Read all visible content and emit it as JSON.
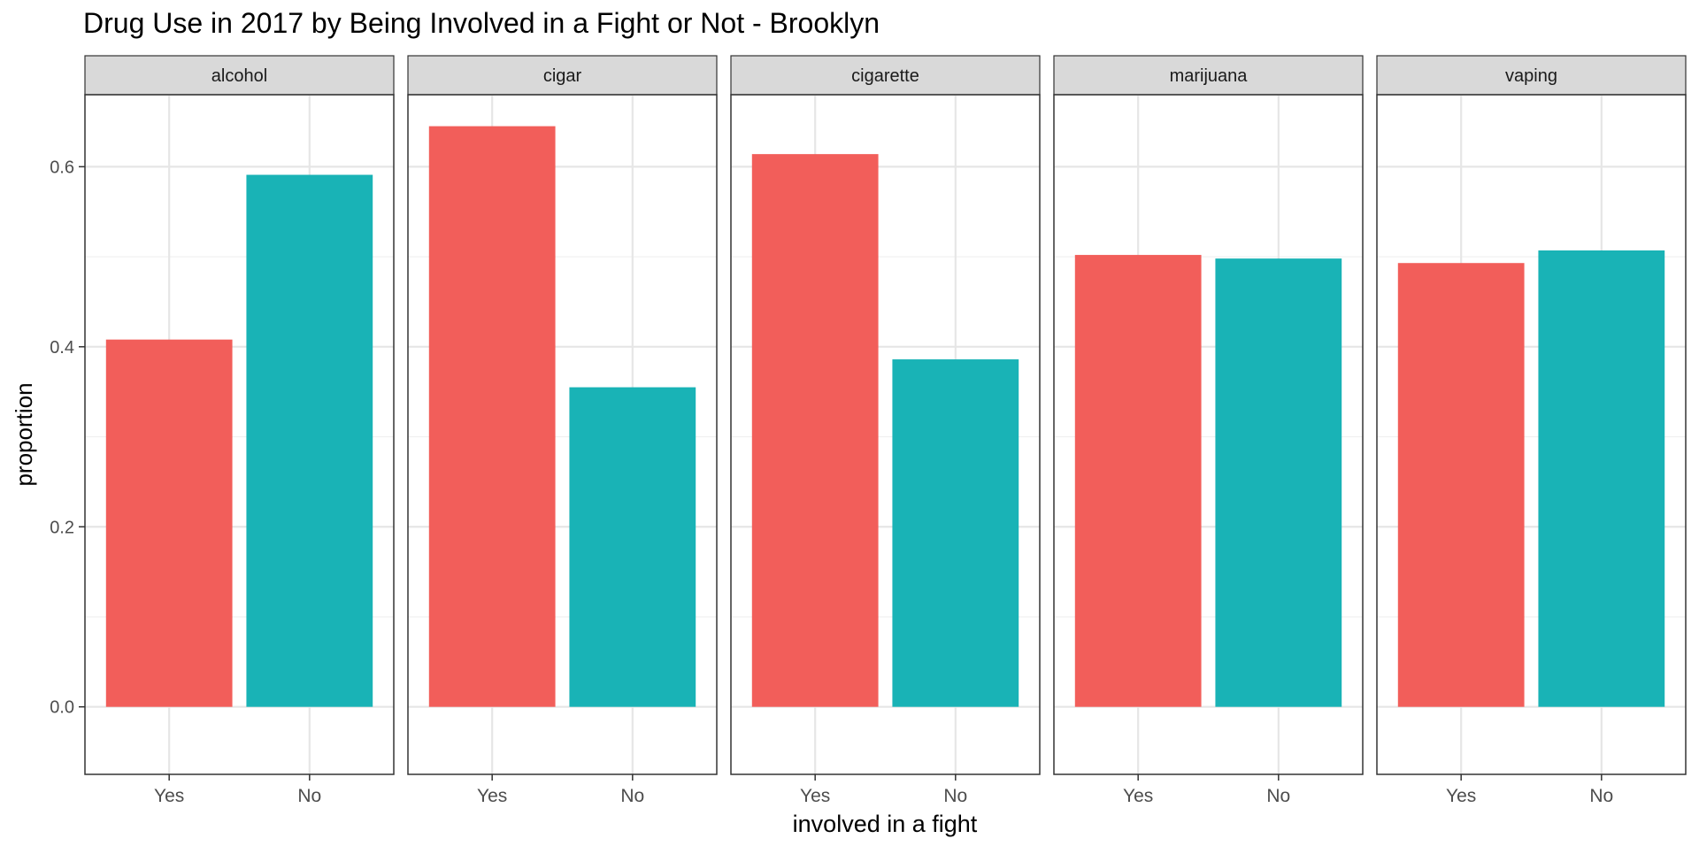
{
  "chart_data": {
    "type": "bar",
    "title": "Drug Use in 2017 by Being Involved in a Fight or Not  - Brooklyn",
    "xlabel": "involved in a fight",
    "ylabel": "proportion",
    "ylim": [
      -0.075,
      0.68
    ],
    "yticks": [
      0.0,
      0.2,
      0.4,
      0.6
    ],
    "ytick_labels": [
      "0.0",
      "0.2",
      "0.4",
      "0.6"
    ],
    "grid": true,
    "legend": "none",
    "categories": [
      "Yes",
      "No"
    ],
    "colors": {
      "Yes": "#F25E5A",
      "No": "#19B3B6"
    },
    "panels": [
      {
        "name": "alcohol",
        "values": [
          0.408,
          0.591
        ]
      },
      {
        "name": "cigar",
        "values": [
          0.645,
          0.355
        ]
      },
      {
        "name": "cigarette",
        "values": [
          0.614,
          0.386
        ]
      },
      {
        "name": "marijuana",
        "values": [
          0.502,
          0.498
        ]
      },
      {
        "name": "vaping",
        "values": [
          0.493,
          0.507
        ]
      }
    ]
  }
}
